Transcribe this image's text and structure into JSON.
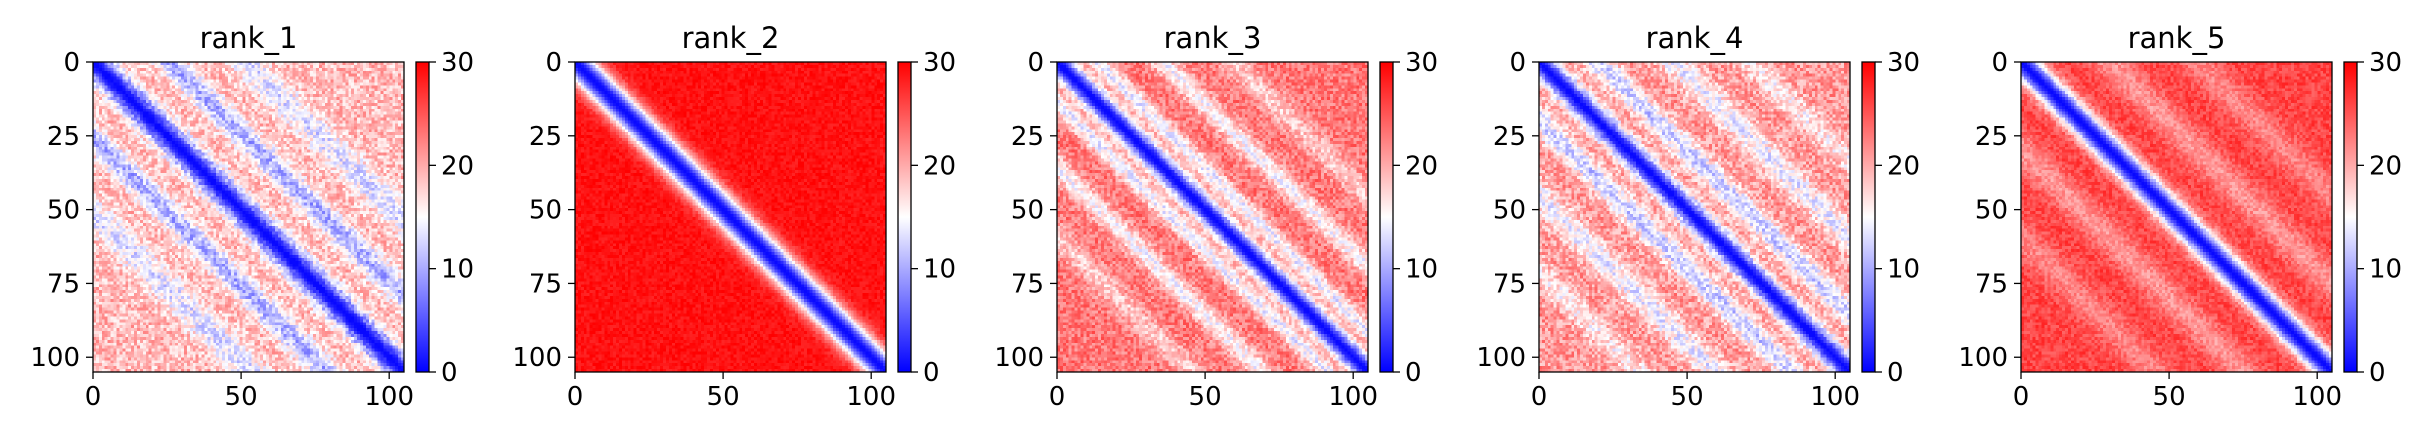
{
  "chart_data": [
    {
      "type": "heatmap",
      "title": "rank_1",
      "matrix_size": 106,
      "xlim": [
        0,
        105
      ],
      "ylim": [
        105,
        0
      ],
      "xticks": [
        0,
        50,
        100
      ],
      "yticks": [
        0,
        25,
        50,
        75,
        100
      ],
      "colormap": "bwr",
      "color_range": [
        0,
        30
      ],
      "colorbar_ticks": [
        0,
        10,
        20,
        30
      ],
      "pattern": {
        "diag_width": 4.5,
        "floor": 19,
        "offdiag_bands": [
          {
            "offset": 26,
            "depth": 9,
            "width": 4
          },
          {
            "offset": 52,
            "depth": 6,
            "width": 5
          }
        ],
        "noise": 3.5,
        "seed": 11
      }
    },
    {
      "type": "heatmap",
      "title": "rank_2",
      "matrix_size": 106,
      "xlim": [
        0,
        105
      ],
      "ylim": [
        105,
        0
      ],
      "xticks": [
        0,
        50,
        100
      ],
      "yticks": [
        0,
        25,
        50,
        75,
        100
      ],
      "colormap": "bwr",
      "color_range": [
        0,
        30
      ],
      "colorbar_ticks": [
        0,
        10,
        20,
        30
      ],
      "pattern": {
        "diag_width": 5,
        "floor": 29,
        "offdiag_bands": [],
        "noise": 1.2,
        "seed": 23
      }
    },
    {
      "type": "heatmap",
      "title": "rank_3",
      "matrix_size": 106,
      "xlim": [
        0,
        105
      ],
      "ylim": [
        105,
        0
      ],
      "xticks": [
        0,
        50,
        100
      ],
      "yticks": [
        0,
        25,
        50,
        75,
        100
      ],
      "colormap": "bwr",
      "color_range": [
        0,
        30
      ],
      "colorbar_ticks": [
        0,
        10,
        20,
        30
      ],
      "pattern": {
        "diag_width": 4,
        "floor": 23,
        "offdiag_bands": [
          {
            "offset": 14,
            "depth": 9,
            "width": 3
          },
          {
            "offset": 36,
            "depth": 8,
            "width": 3.5
          },
          {
            "offset": 60,
            "depth": 5,
            "width": 4
          }
        ],
        "noise": 3,
        "seed": 37
      }
    },
    {
      "type": "heatmap",
      "title": "rank_4",
      "matrix_size": 106,
      "xlim": [
        0,
        105
      ],
      "ylim": [
        105,
        0
      ],
      "xticks": [
        0,
        50,
        100
      ],
      "yticks": [
        0,
        25,
        50,
        75,
        100
      ],
      "colormap": "bwr",
      "color_range": [
        0,
        30
      ],
      "colorbar_ticks": [
        0,
        10,
        20,
        30
      ],
      "pattern": {
        "diag_width": 4,
        "floor": 21,
        "offdiag_bands": [
          {
            "offset": 20,
            "depth": 9,
            "width": 4
          },
          {
            "offset": 46,
            "depth": 7,
            "width": 4.5
          },
          {
            "offset": 72,
            "depth": 5,
            "width": 4
          }
        ],
        "noise": 3.5,
        "seed": 51
      }
    },
    {
      "type": "heatmap",
      "title": "rank_5",
      "matrix_size": 106,
      "xlim": [
        0,
        105
      ],
      "ylim": [
        105,
        0
      ],
      "xticks": [
        0,
        50,
        100
      ],
      "yticks": [
        0,
        25,
        50,
        75,
        100
      ],
      "colormap": "bwr",
      "color_range": [
        0,
        30
      ],
      "colorbar_ticks": [
        0,
        10,
        20,
        30
      ],
      "pattern": {
        "diag_width": 4.5,
        "floor": 26,
        "offdiag_bands": [
          {
            "offset": 30,
            "depth": 5,
            "width": 5
          },
          {
            "offset": 60,
            "depth": 4,
            "width": 5
          }
        ],
        "noise": 2,
        "seed": 67
      }
    }
  ]
}
